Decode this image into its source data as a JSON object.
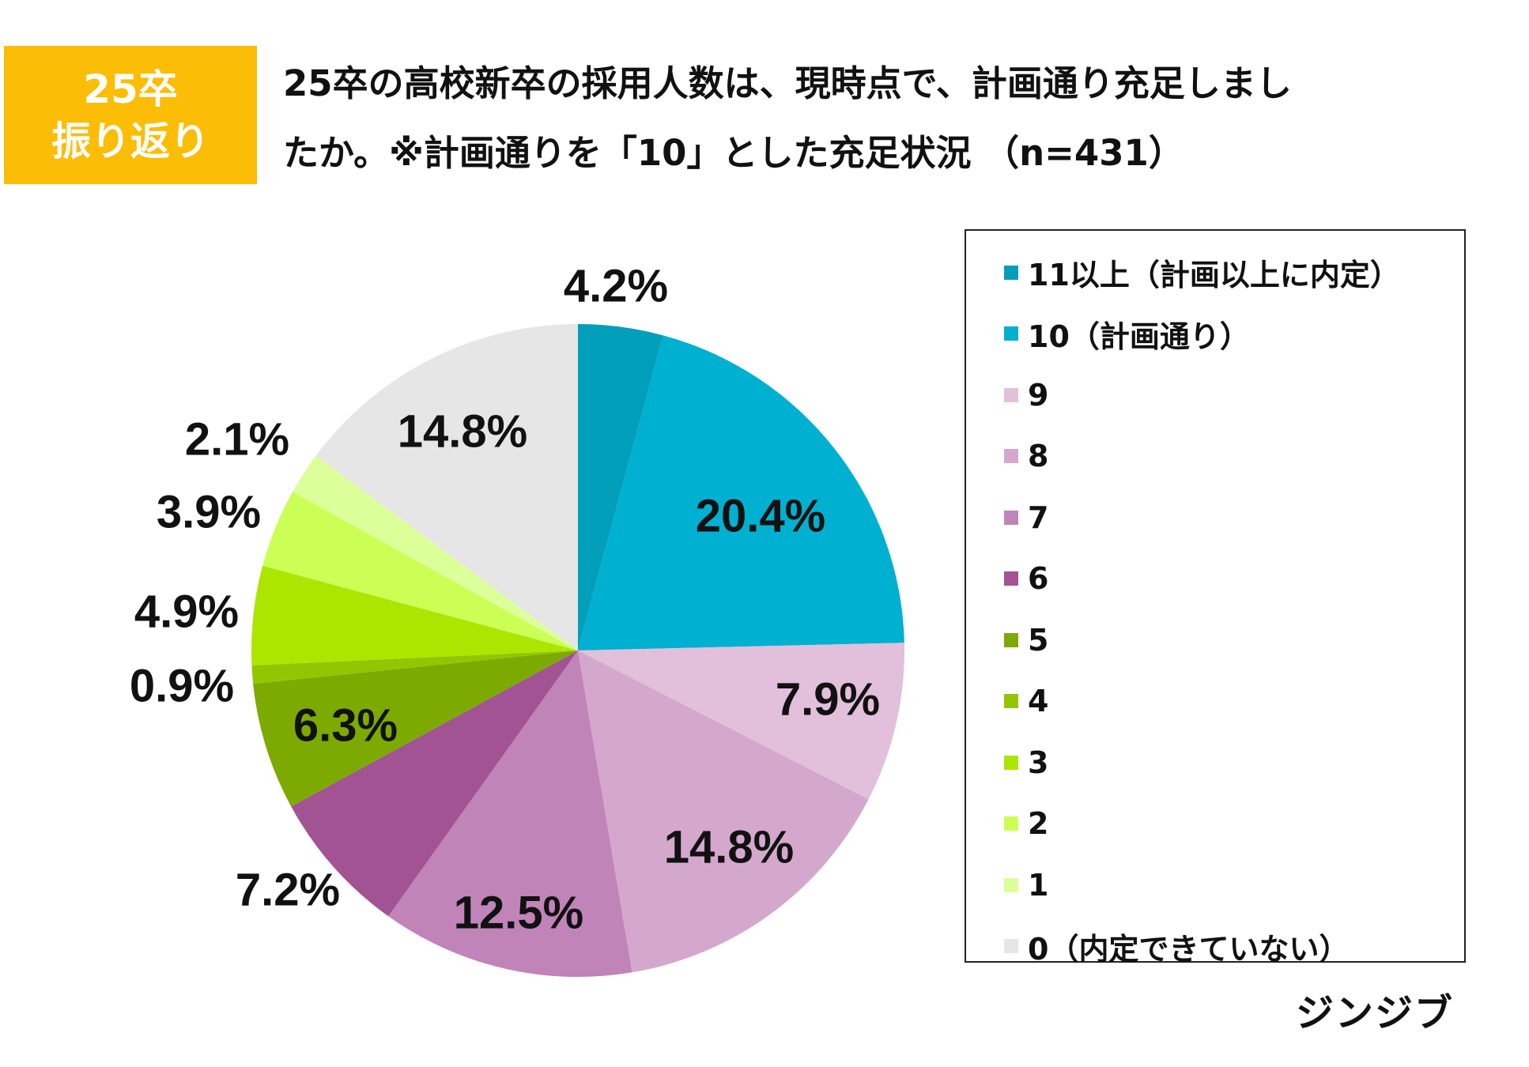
{
  "badge": {
    "line1": "25卒",
    "line2": "振り返り"
  },
  "title": {
    "line1": "25卒の高校新卒の採用人数は、現時点で、計画通り充足しまし",
    "line2": "たか。※計画通りを「10」とした充足状況 （n=431）"
  },
  "brand": "ジンジブ",
  "chart_data": {
    "type": "pie",
    "slices": [
      {
        "label": "11以上（計画以上に内定）",
        "value": 4.2,
        "value_label": "4.2%",
        "color": "#029fbb"
      },
      {
        "label": "10（計画通り）",
        "value": 20.4,
        "value_label": "20.4%",
        "color": "#00b0d0"
      },
      {
        "label": "9",
        "value": 7.9,
        "value_label": "7.9%",
        "color": "#e2bfdb"
      },
      {
        "label": "8",
        "value": 14.8,
        "value_label": "14.8%",
        "color": "#d4a8cc"
      },
      {
        "label": "7",
        "value": 12.5,
        "value_label": "12.5%",
        "color": "#c084b8"
      },
      {
        "label": "6",
        "value": 7.2,
        "value_label": "7.2%",
        "color": "#a15393"
      },
      {
        "label": "5",
        "value": 6.3,
        "value_label": "6.3%",
        "color": "#7caa00"
      },
      {
        "label": "4",
        "value": 0.9,
        "value_label": "0.9%",
        "color": "#93c600"
      },
      {
        "label": "3",
        "value": 4.9,
        "value_label": "4.9%",
        "color": "#ace600"
      },
      {
        "label": "2",
        "value": 3.9,
        "value_label": "3.9%",
        "color": "#ccff55"
      },
      {
        "label": "1",
        "value": 2.1,
        "value_label": "2.1%",
        "color": "#ddff99"
      },
      {
        "label": "0（内定できていない）",
        "value": 14.8,
        "value_label": "14.8%",
        "color": "#e6e6e6"
      }
    ],
    "legend_position": "right",
    "start_angle": "12 o'clock",
    "direction": "clockwise"
  }
}
